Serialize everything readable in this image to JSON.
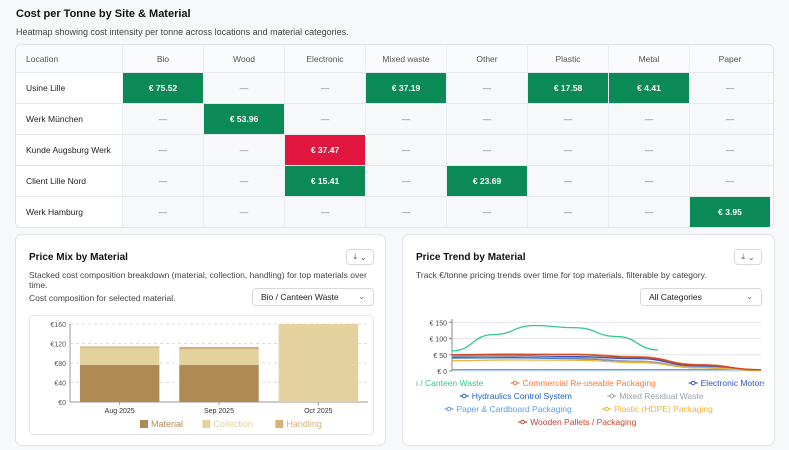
{
  "heatmap": {
    "title": "Cost per Tonne by Site & Material",
    "subtitle": "Heatmap showing cost intensity per tonne across locations and material categories.",
    "columns": [
      "Location",
      "Bio",
      "Wood",
      "Electronic",
      "Mixed waste",
      "Other",
      "Plastic",
      "Metal",
      "Paper"
    ],
    "rows": [
      {
        "location": "Usine Lille",
        "cells": [
          "€ 75.52",
          "—",
          "—",
          "€ 37.19",
          "—",
          "€ 17.58",
          "€ 4.41",
          "—"
        ]
      },
      {
        "location": "Werk München",
        "cells": [
          "—",
          "€ 53.96",
          "—",
          "—",
          "—",
          "—",
          "—",
          "—"
        ]
      },
      {
        "location": "Kunde Augsburg Werk",
        "cells": [
          "—",
          "—",
          "€ 37.47",
          "—",
          "—",
          "—",
          "—",
          "—"
        ]
      },
      {
        "location": "Client Lille Nord",
        "cells": [
          "—",
          "—",
          "€ 15.41",
          "—",
          "€ 23.69",
          "—",
          "—",
          "—"
        ]
      },
      {
        "location": "Werk Hamburg",
        "cells": [
          "—",
          "—",
          "—",
          "—",
          "—",
          "—",
          "—",
          "€ 3.95"
        ]
      }
    ],
    "highlight_colors": {
      "low": "#0b8a57",
      "high": "#e0163f"
    }
  },
  "price_mix": {
    "title": "Price Mix by Material",
    "subtitle": "Stacked cost composition breakdown (material, collection, handling) for top materials over time.",
    "caption": "Cost composition for selected material.",
    "select_value": "Bio / Canteen Waste",
    "download_icon": "download-icon"
  },
  "price_trend": {
    "title": "Price Trend by Material",
    "subtitle": "Track €/tonne pricing trends over time for top materials, filterable by category.",
    "select_value": "All Categories",
    "download_icon": "download-icon"
  },
  "chart_data": [
    {
      "type": "bar",
      "stacked": true,
      "categories": [
        "Aug 2025",
        "Sep 2025",
        "Oct 2025"
      ],
      "series": [
        {
          "name": "Material",
          "color": "#b08a55",
          "values": [
            76,
            76,
            0
          ]
        },
        {
          "name": "Collection",
          "color": "#e3d19e",
          "values": [
            35,
            32,
            160
          ]
        },
        {
          "name": "Handling",
          "color": "#d6b17a",
          "values": [
            3,
            5,
            0
          ]
        }
      ],
      "yticks": [
        "€0",
        "€40",
        "€80",
        "€120",
        "€160"
      ],
      "ylim": [
        0,
        160
      ]
    },
    {
      "type": "line",
      "yticks": [
        "€ 0",
        "€ 50",
        "€ 100",
        "€ 150"
      ],
      "ylim": [
        0,
        160
      ],
      "series": [
        {
          "name": "Bio / Canteen Waste",
          "color": "#34c789",
          "values": [
            62,
            112,
            140,
            133,
            106,
            65
          ]
        },
        {
          "name": "Commercial Re-useable Packaging",
          "color": "#f47a3c",
          "values": [
            48,
            50,
            52,
            44,
            20,
            4
          ]
        },
        {
          "name": "Electronic Motors",
          "color": "#2f52b8",
          "values": [
            44,
            46,
            44,
            38,
            15,
            3
          ]
        },
        {
          "name": "Hydraulics Control System",
          "color": "#1f5fc8",
          "values": [
            40,
            41,
            38,
            30,
            10,
            2
          ]
        },
        {
          "name": "Mixed Residual Waste",
          "color": "#9aa3ad",
          "values": [
            46,
            45,
            40,
            30,
            12,
            3
          ]
        },
        {
          "name": "Paper & Cardboard Packaging",
          "color": "#5aa0e6",
          "values": [
            4,
            4,
            4,
            4,
            4,
            4
          ]
        },
        {
          "name": "Plastic (HDPE) Packaging",
          "color": "#f2b233",
          "values": [
            32,
            34,
            33,
            26,
            10,
            2
          ]
        },
        {
          "name": "Wooden Pallets / Packaging",
          "color": "#c8452e",
          "values": [
            50,
            52,
            50,
            42,
            18,
            4
          ]
        }
      ]
    }
  ]
}
